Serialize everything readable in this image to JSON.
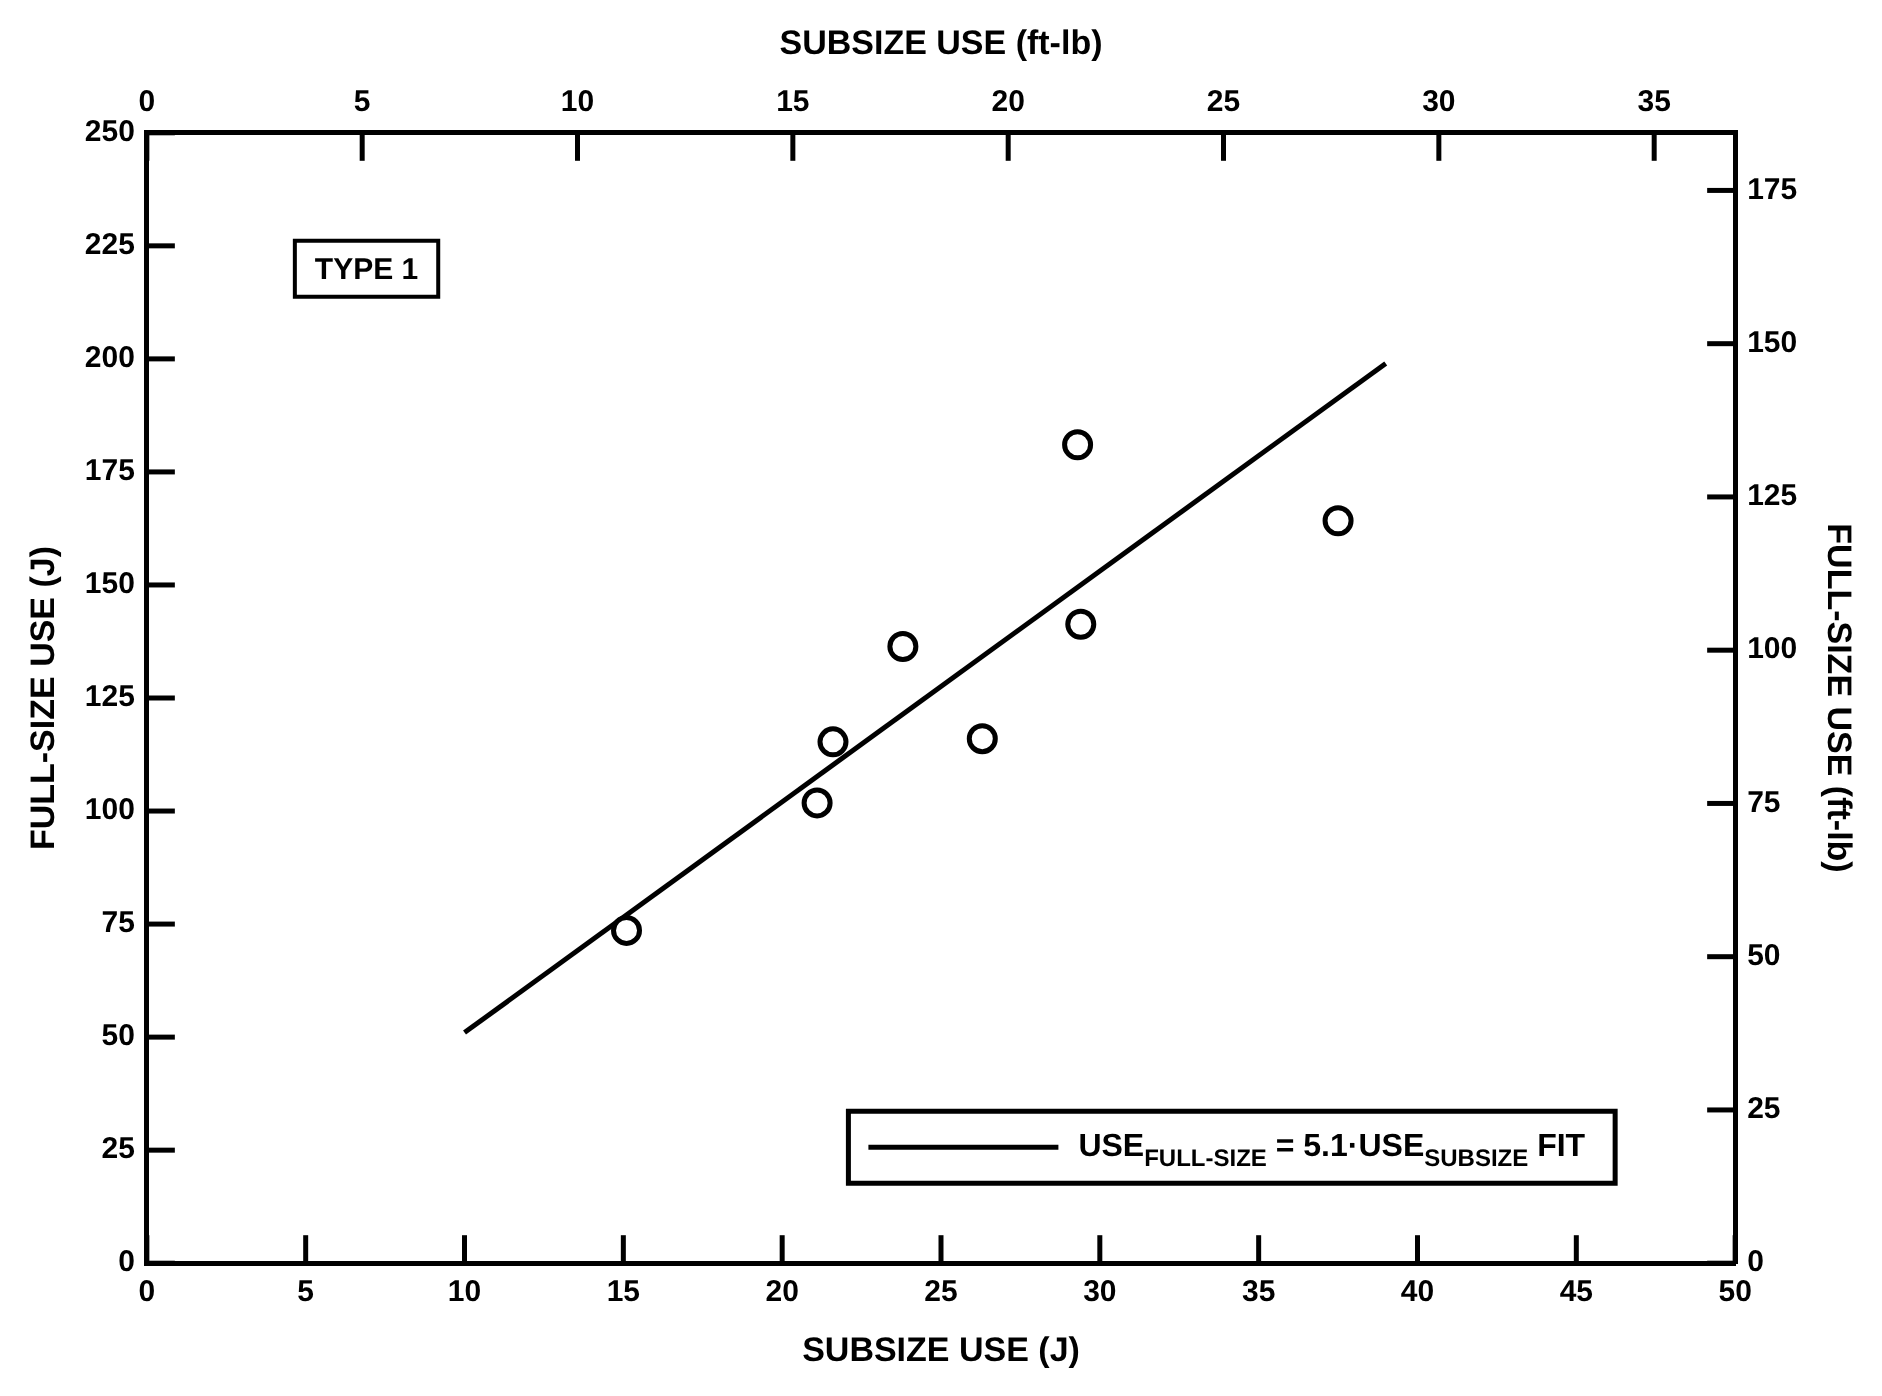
{
  "chart_data": {
    "type": "scatter",
    "xlabel": "SUBSIZE USE (J)",
    "ylabel": "FULL-SIZE USE (J)",
    "x2label": "SUBSIZE USE (ft-lb)",
    "y2label": "FULL-SIZE USE (ft-lb)",
    "xlim": [
      0,
      50
    ],
    "xticks": [
      0,
      5,
      10,
      15,
      20,
      25,
      30,
      35,
      40,
      45,
      50
    ],
    "ylim": [
      0,
      250
    ],
    "yticks": [
      0,
      25,
      50,
      75,
      100,
      125,
      150,
      175,
      200,
      225,
      250
    ],
    "x2lim": [
      0,
      36.88
    ],
    "x2ticks": [
      0,
      5,
      10,
      15,
      20,
      25,
      30,
      35
    ],
    "y2lim": [
      0,
      184.4
    ],
    "y2ticks": [
      0,
      25,
      50,
      75,
      100,
      125,
      150,
      175
    ],
    "legend": "bottom right",
    "annotations": [
      "TYPE 1"
    ],
    "series": [
      {
        "marker": "circle",
        "color": "#000000",
        "x": [
          15.1,
          21.1,
          21.6,
          23.8,
          26.3,
          29.3,
          29.4,
          37.5
        ],
        "values": [
          73.6,
          101.8,
          115.3,
          136.4,
          116,
          181,
          141.3,
          164.2
        ]
      },
      {
        "type": "line",
        "name": "USE$_{FULL-SIZE}$ = 5.1·USE$_{SUBSIZE}$ FIT",
        "color": "#000000",
        "x": [
          10,
          39
        ],
        "values": [
          51,
          199
        ]
      }
    ]
  }
}
